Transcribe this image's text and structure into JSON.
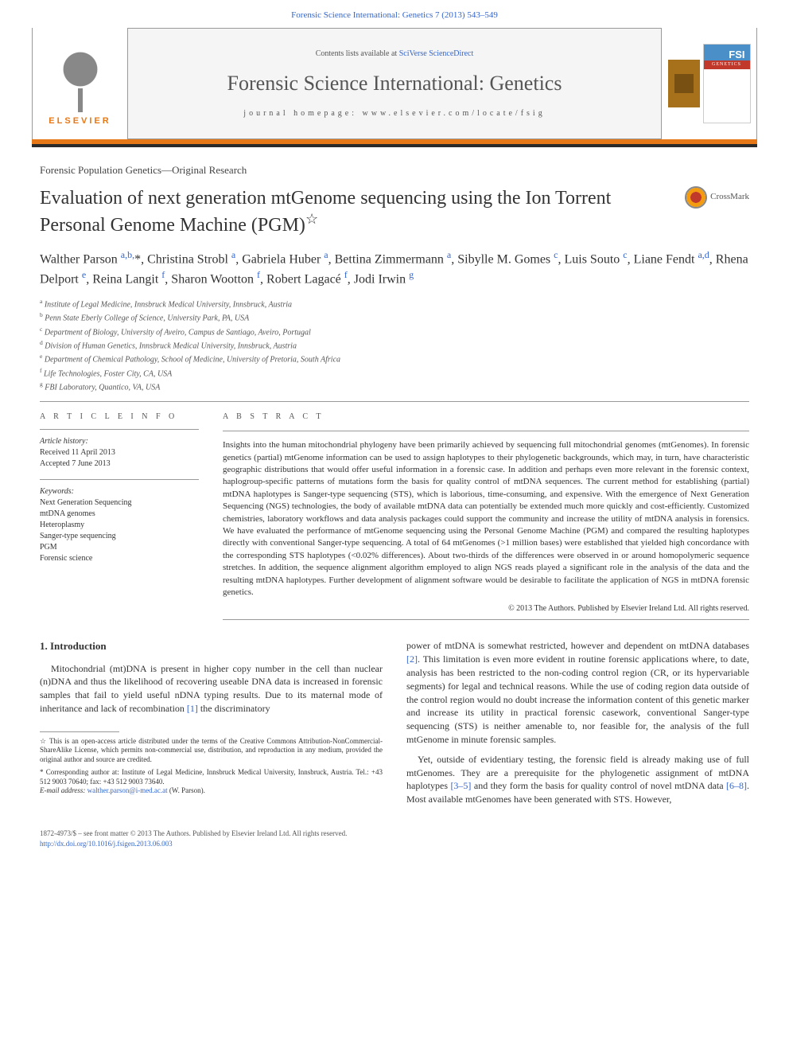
{
  "journal_ref": "Forensic Science International: Genetics 7 (2013) 543–549",
  "header": {
    "contents_prefix": "Contents lists available at ",
    "contents_link": "SciVerse ScienceDirect",
    "journal_title": "Forensic Science International: Genetics",
    "homepage_prefix": "journal homepage: ",
    "homepage_url": "www.elsevier.com/locate/fsig",
    "elsevier_label": "ELSEVIER"
  },
  "article_type": "Forensic Population Genetics—Original Research",
  "title": "Evaluation of next generation mtGenome sequencing using the Ion Torrent Personal Genome Machine (PGM)",
  "title_star": "☆",
  "crossmark_label": "CrossMark",
  "authors_html": "Walther Parson <sup>a,b,</sup>*, Christina Strobl <sup>a</sup>, Gabriela Huber <sup>a</sup>, Bettina Zimmermann <sup>a</sup>, Sibylle M. Gomes <sup>c</sup>, Luis Souto <sup>c</sup>, Liane Fendt <sup>a,d</sup>, Rhena Delport <sup>e</sup>, Reina Langit <sup>f</sup>, Sharon Wootton <sup>f</sup>, Robert Lagacé <sup>f</sup>, Jodi Irwin <sup>g</sup>",
  "affiliations": [
    {
      "sup": "a",
      "text": "Institute of Legal Medicine, Innsbruck Medical University, Innsbruck, Austria"
    },
    {
      "sup": "b",
      "text": "Penn State Eberly College of Science, University Park, PA, USA"
    },
    {
      "sup": "c",
      "text": "Department of Biology, University of Aveiro, Campus de Santiago, Aveiro, Portugal"
    },
    {
      "sup": "d",
      "text": "Division of Human Genetics, Innsbruck Medical University, Innsbruck, Austria"
    },
    {
      "sup": "e",
      "text": "Department of Chemical Pathology, School of Medicine, University of Pretoria, South Africa"
    },
    {
      "sup": "f",
      "text": "Life Technologies, Foster City, CA, USA"
    },
    {
      "sup": "g",
      "text": "FBI Laboratory, Quantico, VA, USA"
    }
  ],
  "info": {
    "heading": "A R T I C L E   I N F O",
    "history_label": "Article history:",
    "received": "Received 11 April 2013",
    "accepted": "Accepted 7 June 2013",
    "keywords_label": "Keywords:",
    "keywords": [
      "Next Generation Sequencing",
      "mtDNA genomes",
      "Heteroplasmy",
      "Sanger-type sequencing",
      "PGM",
      "Forensic science"
    ]
  },
  "abstract": {
    "heading": "A B S T R A C T",
    "text": "Insights into the human mitochondrial phylogeny have been primarily achieved by sequencing full mitochondrial genomes (mtGenomes). In forensic genetics (partial) mtGenome information can be used to assign haplotypes to their phylogenetic backgrounds, which may, in turn, have characteristic geographic distributions that would offer useful information in a forensic case. In addition and perhaps even more relevant in the forensic context, haplogroup-specific patterns of mutations form the basis for quality control of mtDNA sequences. The current method for establishing (partial) mtDNA haplotypes is Sanger-type sequencing (STS), which is laborious, time-consuming, and expensive. With the emergence of Next Generation Sequencing (NGS) technologies, the body of available mtDNA data can potentially be extended much more quickly and cost-efficiently. Customized chemistries, laboratory workflows and data analysis packages could support the community and increase the utility of mtDNA analysis in forensics. We have evaluated the performance of mtGenome sequencing using the Personal Genome Machine (PGM) and compared the resulting haplotypes directly with conventional Sanger-type sequencing. A total of 64 mtGenomes (>1 million bases) were established that yielded high concordance with the corresponding STS haplotypes (<0.02% differences). About two-thirds of the differences were observed in or around homopolymeric sequence stretches. In addition, the sequence alignment algorithm employed to align NGS reads played a significant role in the analysis of the data and the resulting mtDNA haplotypes. Further development of alignment software would be desirable to facilitate the application of NGS in mtDNA forensic genetics.",
    "copyright": "© 2013 The Authors. Published by Elsevier Ireland Ltd. All rights reserved."
  },
  "section1_heading": "1. Introduction",
  "col1_para1": "Mitochondrial (mt)DNA is present in higher copy number in the cell than nuclear (n)DNA and thus the likelihood of recovering useable DNA data is increased in forensic samples that fail to yield useful nDNA typing results. Due to its maternal mode of inheritance and lack of recombination [1] the discriminatory",
  "col2_para1": "power of mtDNA is somewhat restricted, however and dependent on mtDNA databases [2]. This limitation is even more evident in routine forensic applications where, to date, analysis has been restricted to the non-coding control region (CR, or its hypervariable segments) for legal and technical reasons. While the use of coding region data outside of the control region would no doubt increase the information content of this genetic marker and increase its utility in practical forensic casework, conventional Sanger-type sequencing (STS) is neither amenable to, nor feasible for, the analysis of the full mtGenome in minute forensic samples.",
  "col2_para2": "Yet, outside of evidentiary testing, the forensic field is already making use of full mtGenomes. They are a prerequisite for the phylogenetic assignment of mtDNA haplotypes [3–5] and they form the basis for quality control of novel mtDNA data [6–8]. Most available mtGenomes have been generated with STS. However,",
  "footnotes": {
    "star": "☆ This is an open-access article distributed under the terms of the Creative Commons Attribution-NonCommercial-ShareAlike License, which permits non-commercial use, distribution, and reproduction in any medium, provided the original author and source are credited.",
    "corresponding": "* Corresponding author at: Institute of Legal Medicine, Innsbruck Medical University, Innsbruck, Austria. Tel.: +43 512 9003 70640; fax: +43 512 9003 73640.",
    "email_label": "E-mail address: ",
    "email": "walther.parson@i-med.ac.at",
    "email_suffix": " (W. Parson)."
  },
  "footer": {
    "issn": "1872-4973/$ – see front matter © 2013 The Authors. Published by Elsevier Ireland Ltd. All rights reserved.",
    "doi": "http://dx.doi.org/10.1016/j.fsigen.2013.06.003"
  },
  "colors": {
    "link": "#3366cc",
    "orange": "#e67817",
    "text": "#333333",
    "rule": "#999999"
  }
}
